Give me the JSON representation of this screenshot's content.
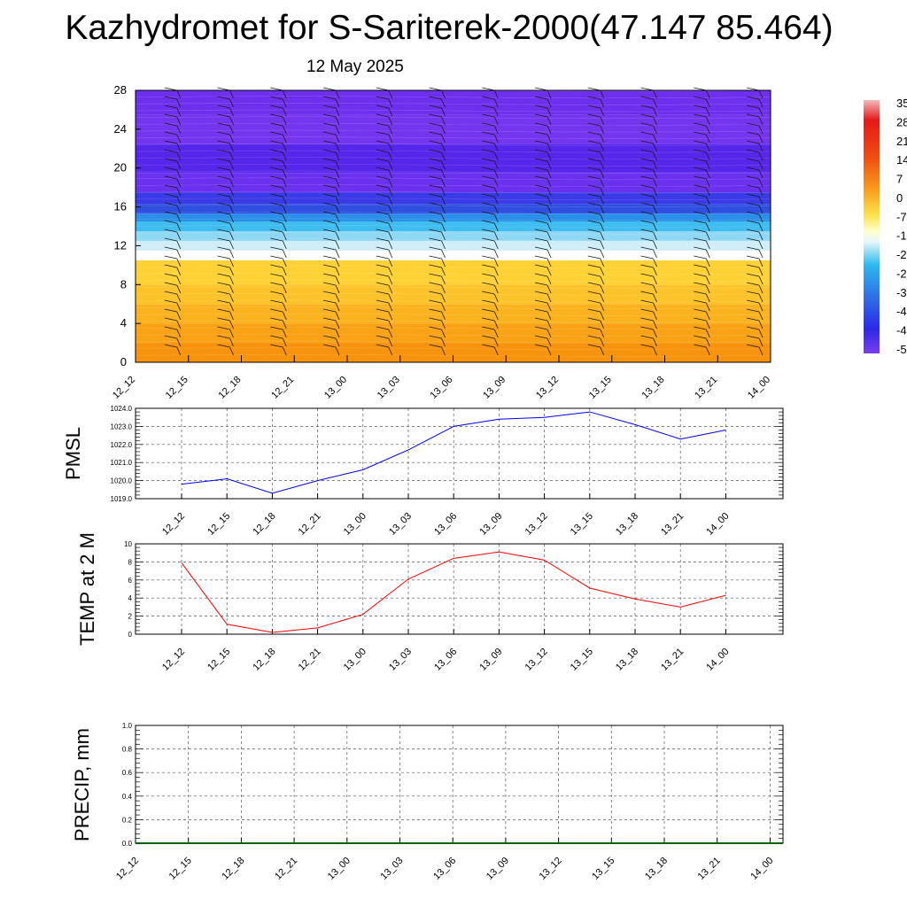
{
  "title": "Kazhydromet for S-Sariterek-2000(47.147 85.464)",
  "subtitle": "12 May 2025",
  "chart_data": [
    {
      "type": "heatmap",
      "name": "vertical-section",
      "xticks": [
        "12_12",
        "12_15",
        "12_18",
        "12_21",
        "13_00",
        "13_03",
        "13_06",
        "13_09",
        "13_12",
        "13_15",
        "13_18",
        "13_21",
        "14_00"
      ],
      "yticks": [
        0,
        4,
        8,
        12,
        16,
        20,
        24,
        28
      ],
      "ylim": [
        0,
        28
      ],
      "colorbar_labels": [
        "35",
        "28",
        "21",
        "14",
        "7",
        "0",
        "-7",
        "-1",
        "-2",
        "-2",
        "-3",
        "-4",
        "-4",
        "-5"
      ],
      "bands": [
        {
          "y0": 0,
          "y1": 2,
          "color": "#f7930c"
        },
        {
          "y0": 2,
          "y1": 4,
          "color": "#f9a216"
        },
        {
          "y0": 4,
          "y1": 6,
          "color": "#fab31f"
        },
        {
          "y0": 6,
          "y1": 8,
          "color": "#fcc42a"
        },
        {
          "y0": 8,
          "y1": 10.5,
          "color": "#fed235"
        },
        {
          "y0": 10.5,
          "y1": 11.5,
          "color": "#ffffff"
        },
        {
          "y0": 11.5,
          "y1": 12.5,
          "color": "#cfeef8"
        },
        {
          "y0": 12.5,
          "y1": 13.5,
          "color": "#8fd8f5"
        },
        {
          "y0": 13.5,
          "y1": 14.5,
          "color": "#3fbdf0"
        },
        {
          "y0": 14.5,
          "y1": 15.3,
          "color": "#2a8fe8"
        },
        {
          "y0": 15.3,
          "y1": 16.3,
          "color": "#2f4fe0"
        },
        {
          "y0": 16.3,
          "y1": 17.5,
          "color": "#3a3ae6"
        },
        {
          "y0": 17.5,
          "y1": 19.5,
          "color": "#6a32ee"
        },
        {
          "y0": 19.5,
          "y1": 22.5,
          "color": "#5626ea"
        },
        {
          "y0": 22.5,
          "y1": 25.5,
          "color": "#7535ef"
        },
        {
          "y0": 25.5,
          "y1": 28,
          "color": "#6f30ee"
        }
      ]
    },
    {
      "type": "line",
      "name": "pmsl",
      "ylabel": "PMSL",
      "x": [
        "12_12",
        "12_15",
        "12_18",
        "12_21",
        "13_00",
        "13_03",
        "13_06",
        "13_09",
        "13_12",
        "13_15",
        "13_18",
        "13_21",
        "14_00"
      ],
      "values": [
        1019.8,
        1020.1,
        1019.3,
        1020.0,
        1020.6,
        1021.7,
        1023.0,
        1023.4,
        1023.5,
        1023.8,
        1023.1,
        1022.3,
        1022.8
      ],
      "ylim": [
        1019.0,
        1024.0
      ],
      "yticks": [
        "1019.0",
        "1020.0",
        "1021.0",
        "1022.0",
        "1023.0",
        "1024.0"
      ],
      "color": "#0000ff"
    },
    {
      "type": "line",
      "name": "temp",
      "ylabel": "TEMP at 2 M",
      "x": [
        "12_12",
        "12_15",
        "12_18",
        "12_21",
        "13_00",
        "13_03",
        "13_06",
        "13_09",
        "13_12",
        "13_15",
        "13_18",
        "13_21",
        "14_00"
      ],
      "values": [
        7.9,
        1.1,
        0.2,
        0.7,
        2.2,
        6.1,
        8.4,
        9.1,
        8.2,
        5.1,
        3.9,
        3.0,
        4.3
      ],
      "ylim": [
        0,
        10
      ],
      "yticks": [
        "0",
        "2",
        "4",
        "6",
        "8",
        "10"
      ],
      "color": "#ff0000"
    },
    {
      "type": "line",
      "name": "precip",
      "ylabel": "PRECIP, mm",
      "xticks": [
        "12_12",
        "12_15",
        "12_18",
        "12_21",
        "13_00",
        "13_03",
        "13_06",
        "13_09",
        "13_12",
        "13_15",
        "13_18",
        "13_21",
        "14_00"
      ],
      "values": [
        0,
        0,
        0,
        0,
        0,
        0,
        0,
        0,
        0,
        0,
        0,
        0,
        0
      ],
      "ylim": [
        0,
        1.0
      ],
      "yticks": [
        "0.0",
        "0.2",
        "0.4",
        "0.6",
        "0.8",
        "1.0"
      ],
      "color": "#006400"
    }
  ]
}
